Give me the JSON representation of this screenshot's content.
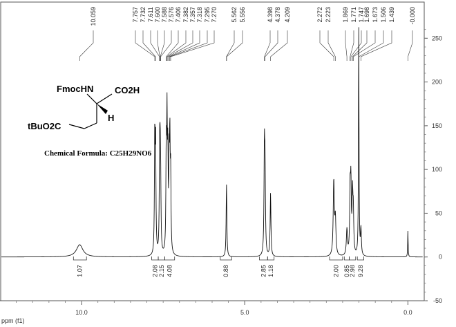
{
  "chart_data": {
    "type": "line",
    "xlabel": "ppm (f1)",
    "xlim": [
      12.5,
      -0.5
    ],
    "ylim": [
      -50,
      270
    ],
    "x_ticks": [
      "10.0",
      "5.0",
      "0.0"
    ],
    "y_ticks": [
      "250",
      "200",
      "150",
      "100",
      "50",
      "0",
      "-50"
    ],
    "peak_labels": [
      "10.059",
      "7.757",
      "7.732",
      "7.611",
      "7.600",
      "7.588",
      "7.576",
      "7.406",
      "7.382",
      "7.357",
      "7.318",
      "7.295",
      "7.270",
      "5.562",
      "5.556",
      "4.398",
      "4.378",
      "4.209",
      "2.272",
      "2.223",
      "1.869",
      "1.771",
      "1.747",
      "1.698",
      "1.673",
      "1.506",
      "1.439",
      "-0.000"
    ],
    "integrals": [
      {
        "label": "1.07",
        "from": 10.25,
        "to": 9.85
      },
      {
        "label": "2.08",
        "from": 7.85,
        "to": 7.65
      },
      {
        "label": "2.15",
        "from": 7.65,
        "to": 7.45
      },
      {
        "label": "4.08",
        "from": 7.45,
        "to": 7.15
      },
      {
        "label": "0.88",
        "from": 5.75,
        "to": 5.4
      },
      {
        "label": "2.85",
        "from": 4.55,
        "to": 4.3
      },
      {
        "label": "1.18",
        "from": 4.3,
        "to": 4.1
      },
      {
        "label": "2.00",
        "from": 2.4,
        "to": 2.0
      },
      {
        "label": "0.85",
        "from": 1.95,
        "to": 1.8
      },
      {
        "label": "2.98",
        "from": 1.8,
        "to": 1.6
      },
      {
        "label": "9.28",
        "from": 1.55,
        "to": 1.35
      }
    ],
    "peaks": [
      {
        "ppm": 10.059,
        "height": 14,
        "width": 0.12
      },
      {
        "ppm": 7.757,
        "height": 135,
        "width": 0.012
      },
      {
        "ppm": 7.732,
        "height": 128,
        "width": 0.012
      },
      {
        "ppm": 7.611,
        "height": 70,
        "width": 0.012
      },
      {
        "ppm": 7.6,
        "height": 72,
        "width": 0.012
      },
      {
        "ppm": 7.588,
        "height": 62,
        "width": 0.012
      },
      {
        "ppm": 7.576,
        "height": 58,
        "width": 0.012
      },
      {
        "ppm": 7.406,
        "height": 110,
        "width": 0.012
      },
      {
        "ppm": 7.382,
        "height": 140,
        "width": 0.012
      },
      {
        "ppm": 7.357,
        "height": 100,
        "width": 0.012
      },
      {
        "ppm": 7.318,
        "height": 95,
        "width": 0.012
      },
      {
        "ppm": 7.295,
        "height": 120,
        "width": 0.012
      },
      {
        "ppm": 7.27,
        "height": 85,
        "width": 0.012
      },
      {
        "ppm": 5.562,
        "height": 48,
        "width": 0.012
      },
      {
        "ppm": 5.556,
        "height": 40,
        "width": 0.012
      },
      {
        "ppm": 4.398,
        "height": 115,
        "width": 0.014
      },
      {
        "ppm": 4.378,
        "height": 90,
        "width": 0.014
      },
      {
        "ppm": 4.209,
        "height": 72,
        "width": 0.014
      },
      {
        "ppm": 2.272,
        "height": 85,
        "width": 0.02
      },
      {
        "ppm": 2.223,
        "height": 40,
        "width": 0.02
      },
      {
        "ppm": 1.869,
        "height": 30,
        "width": 0.02
      },
      {
        "ppm": 1.771,
        "height": 70,
        "width": 0.015
      },
      {
        "ppm": 1.747,
        "height": 75,
        "width": 0.015
      },
      {
        "ppm": 1.698,
        "height": 65,
        "width": 0.015
      },
      {
        "ppm": 1.673,
        "height": 45,
        "width": 0.015
      },
      {
        "ppm": 1.506,
        "height": 262,
        "width": 0.01
      },
      {
        "ppm": 1.439,
        "height": 30,
        "width": 0.015
      },
      {
        "ppm": 0.0,
        "height": 30,
        "width": 0.008
      }
    ],
    "structure": {
      "fmoc": "FmocHN",
      "acid": "CO2H",
      "h": "H",
      "ester": "tBuO2C",
      "formula_label": "Chemical Formula: C25H29NO6"
    }
  }
}
